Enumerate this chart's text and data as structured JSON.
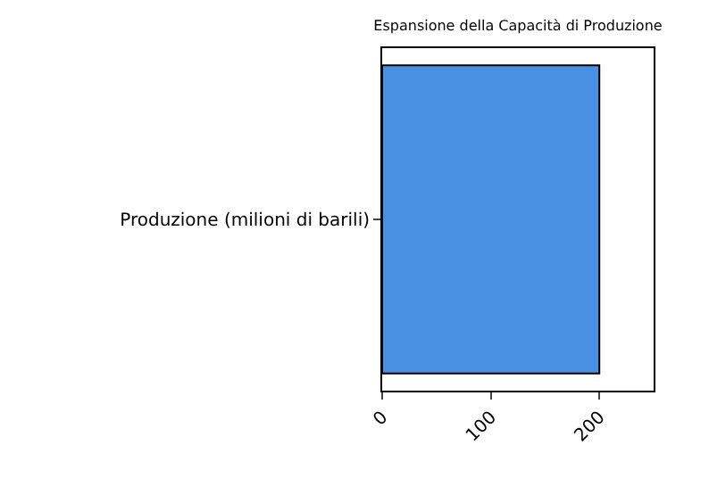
{
  "chart_data": {
    "type": "bar",
    "orientation": "horizontal",
    "title": "Espansione della Capacità di Produzione",
    "categories": [
      "Produzione (milioni di barili)"
    ],
    "values": [
      200
    ],
    "color": "#4a90e2",
    "xlim": [
      0,
      250
    ],
    "xticks": [
      0,
      100,
      200
    ],
    "grid": false,
    "legend": false
  }
}
